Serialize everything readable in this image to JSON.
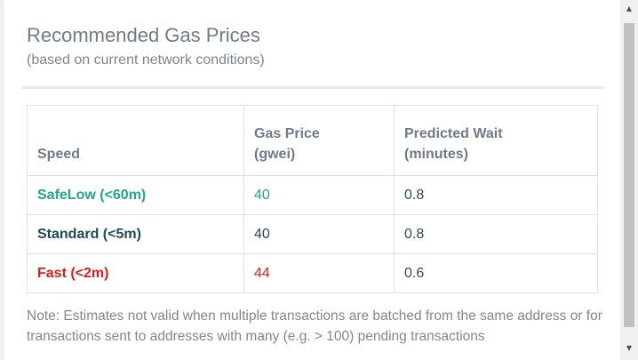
{
  "header": {
    "title": "Recommended Gas Prices",
    "subtitle": "(based on current network conditions)"
  },
  "table": {
    "columns": [
      {
        "line1": "Speed",
        "line2": ""
      },
      {
        "line1": "Gas Price",
        "line2": "(gwei)"
      },
      {
        "line1": "Predicted Wait",
        "line2": "(minutes)"
      }
    ],
    "rows": [
      {
        "speed": "SafeLow (<60m)",
        "gas_price": "40",
        "wait": "0.8",
        "color": "#22a883"
      },
      {
        "speed": "Standard (<5m)",
        "gas_price": "40",
        "wait": "0.8",
        "color": "#1e4a5e"
      },
      {
        "speed": "Fast (<2m)",
        "gas_price": "44",
        "wait": "0.6",
        "color": "#e21b1b"
      }
    ]
  },
  "note": "Note: Estimates not valid when multiple transactions are batched from the same address or for transactions sent to addresses with many (e.g. > 100) pending transactions",
  "scrollbar": {
    "up_icon": "triangle-up-icon",
    "down_icon": "triangle-down-icon"
  }
}
